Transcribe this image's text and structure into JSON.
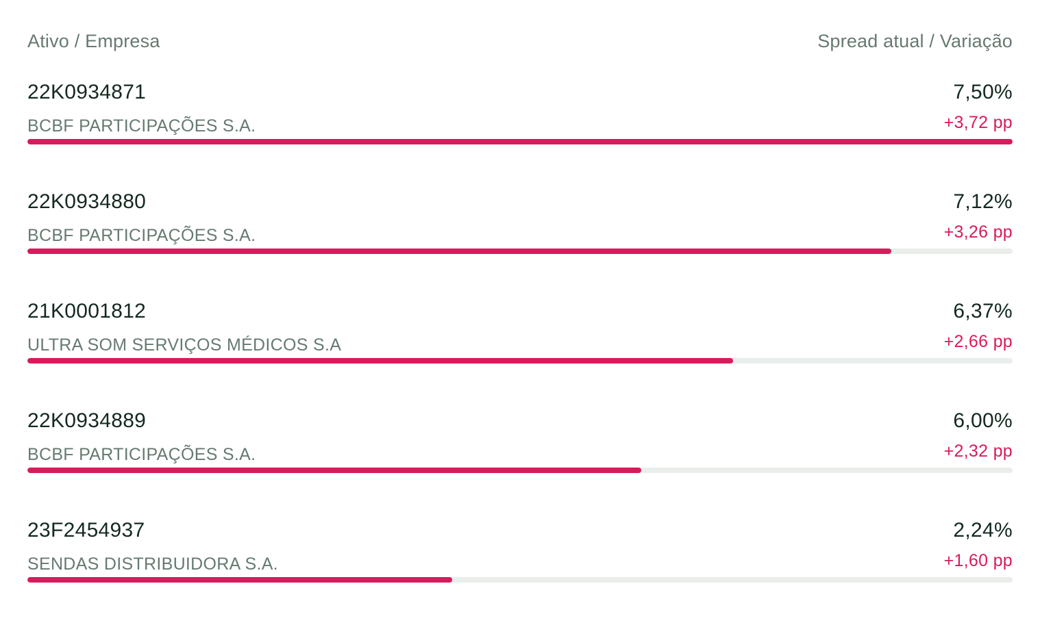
{
  "header": {
    "left_label": "Ativo / Empresa",
    "right_label": "Spread atual / Variação"
  },
  "colors": {
    "bar_fill": "#d81b5c",
    "bar_track": "#e9eeeb",
    "primary_text": "#14291f",
    "secondary_text": "#667a70",
    "variation_text": "#d81b5c"
  },
  "chart_data": {
    "type": "bar",
    "orientation": "horizontal",
    "grid": false,
    "legend": "none",
    "xlim": [
      0,
      7.5
    ],
    "categories": [
      "22K0934871",
      "22K0934880",
      "21K0001812",
      "22K0934889",
      "23F2454937"
    ],
    "values": [
      7.5,
      7.12,
      6.37,
      6.0,
      2.24
    ],
    "rows": [
      {
        "code": "22K0934871",
        "company": "BCBF PARTICIPAÇÕES S.A.",
        "spread_label": "7,50%",
        "variation_label": "+3,72 pp",
        "fill_fraction": 1.0
      },
      {
        "code": "22K0934880",
        "company": "BCBF PARTICIPAÇÕES S.A.",
        "spread_label": "7,12%",
        "variation_label": "+3,26 pp",
        "fill_fraction": 0.877
      },
      {
        "code": "21K0001812",
        "company": "ULTRA SOM SERVIÇOS MÉDICOS S.A",
        "spread_label": "6,37%",
        "variation_label": "+2,66 pp",
        "fill_fraction": 0.716
      },
      {
        "code": "22K0934889",
        "company": "BCBF PARTICIPAÇÕES S.A.",
        "spread_label": "6,00%",
        "variation_label": "+2,32 pp",
        "fill_fraction": 0.623
      },
      {
        "code": "23F2454937",
        "company": "SENDAS DISTRIBUIDORA S.A.",
        "spread_label": "2,24%",
        "variation_label": "+1,60 pp",
        "fill_fraction": 0.431
      }
    ]
  }
}
